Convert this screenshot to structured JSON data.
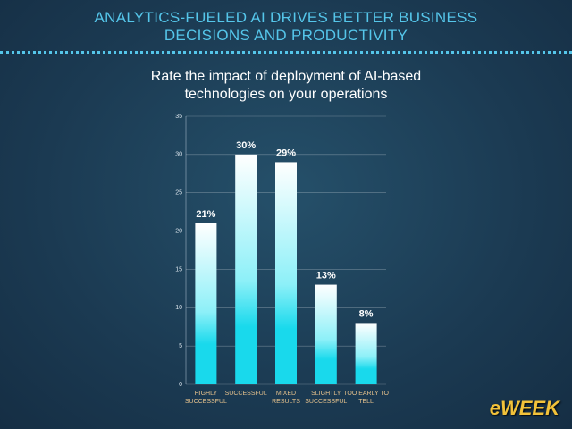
{
  "header": {
    "title": "ANALYTICS-FUELED AI DRIVES BETTER BUSINESS DECISIONS AND PRODUCTIVITY"
  },
  "logo": "eWEEK",
  "chart_data": {
    "type": "bar",
    "title": "Rate the impact of deployment of AI-based technologies on your operations",
    "categories": [
      "HIGHLY SUCCESSFUL",
      "SUCCESSFUL",
      "MIXED RESULTS",
      "SLIGHTLY SUCCESSFUL",
      "TOO EARLY TO TELL"
    ],
    "values": [
      21,
      30,
      29,
      13,
      8
    ],
    "value_labels": [
      "21%",
      "30%",
      "29%",
      "13%",
      "8%"
    ],
    "color": "#19d9ec",
    "ylim": [
      0,
      35
    ],
    "yticks": [
      0,
      5,
      10,
      15,
      20,
      25,
      30,
      35
    ],
    "grid": true
  }
}
